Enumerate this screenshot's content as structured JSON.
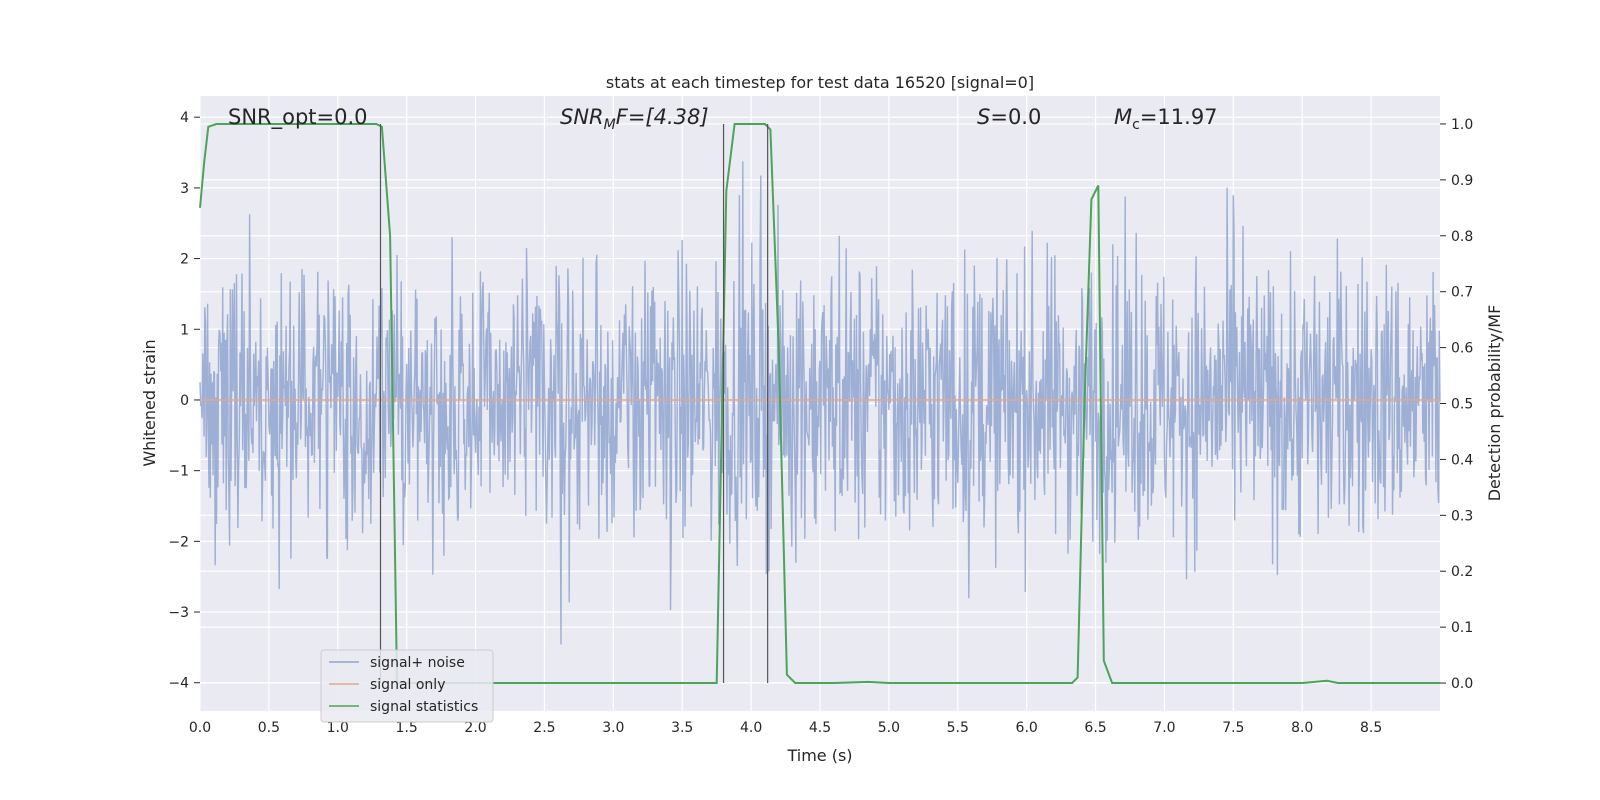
{
  "chart_data": {
    "type": "line",
    "title": "stats at each timestep for test data 16520 [signal=0]",
    "xlabel": "Time (s)",
    "ylabel": "Whitened strain",
    "y2label": "Detection probability/MF",
    "xlim": [
      0.0,
      9.0
    ],
    "ylim": [
      -4.4,
      4.3
    ],
    "y2lim": [
      -0.05,
      1.05
    ],
    "grid": true,
    "legend_position": "lower-left",
    "x_ticks": [
      0.0,
      0.5,
      1.0,
      1.5,
      2.0,
      2.5,
      3.0,
      3.5,
      4.0,
      4.5,
      5.0,
      5.5,
      6.0,
      6.5,
      7.0,
      7.5,
      8.0,
      8.5
    ],
    "x_tick_labels": [
      "0.0",
      "0.5",
      "1.0",
      "1.5",
      "2.0",
      "2.5",
      "3.0",
      "3.5",
      "4.0",
      "4.5",
      "5.0",
      "5.5",
      "6.0",
      "6.5",
      "7.0",
      "7.5",
      "8.0",
      "8.5"
    ],
    "y_ticks": [
      -4,
      -3,
      -2,
      -1,
      0,
      1,
      2,
      3,
      4
    ],
    "y_tick_labels": [
      "−4",
      "−3",
      "−2",
      "−1",
      "0",
      "1",
      "2",
      "3",
      "4"
    ],
    "y2_ticks": [
      0.0,
      0.1,
      0.2,
      0.3,
      0.4,
      0.5,
      0.6,
      0.7,
      0.8,
      0.9,
      1.0
    ],
    "y2_tick_labels": [
      "0.0",
      "0.1",
      "0.2",
      "0.3",
      "0.4",
      "0.5",
      "0.6",
      "0.7",
      "0.8",
      "0.9",
      "1.0"
    ],
    "annotations": {
      "snr_opt": "SNR_opt=0.0",
      "snr_mf_main": "SNR",
      "snr_mf_sub": "M",
      "snr_mf_rest": "F=[4.38]",
      "s_main": "S",
      "s_rest": "=0.0",
      "mc_main": "M",
      "mc_sub": "c",
      "mc_rest": "=11.97"
    },
    "vertical_markers": [
      1.31,
      3.8,
      4.12
    ],
    "series": [
      {
        "name": "signal+ noise",
        "color": "#8fa5cf",
        "style": "noise",
        "x_range": [
          0.0,
          9.0
        ],
        "envelope": [
          -3.6,
          3.85
        ]
      },
      {
        "name": "signal only",
        "color": "#e6a589",
        "x": [
          0.0,
          9.0
        ],
        "y": [
          0.0,
          0.0
        ]
      },
      {
        "name": "signal statistics",
        "color": "#4ca35a",
        "axis": "right",
        "x": [
          0.0,
          0.03,
          0.06,
          0.12,
          0.2,
          0.5,
          1.0,
          1.28,
          1.32,
          1.38,
          1.43,
          1.5,
          2.0,
          3.0,
          3.75,
          3.82,
          3.88,
          4.0,
          4.1,
          4.14,
          4.2,
          4.26,
          4.32,
          4.6,
          4.85,
          5.0,
          6.0,
          6.33,
          6.37,
          6.42,
          6.47,
          6.52,
          6.56,
          6.62,
          7.0,
          8.0,
          8.18,
          8.26,
          8.5,
          9.0
        ],
        "y": [
          0.85,
          0.93,
          0.995,
          1.0,
          1.0,
          1.0,
          1.0,
          1.0,
          0.995,
          0.8,
          0.0,
          0.0,
          0.0,
          0.0,
          0.0,
          0.88,
          1.0,
          1.0,
          1.0,
          0.99,
          0.6,
          0.015,
          0.0,
          0.0,
          0.002,
          0.0,
          0.0,
          0.0,
          0.01,
          0.5,
          0.865,
          0.89,
          0.04,
          0.0,
          0.0,
          0.0,
          0.004,
          0.0,
          0.0,
          0.0
        ]
      }
    ]
  }
}
